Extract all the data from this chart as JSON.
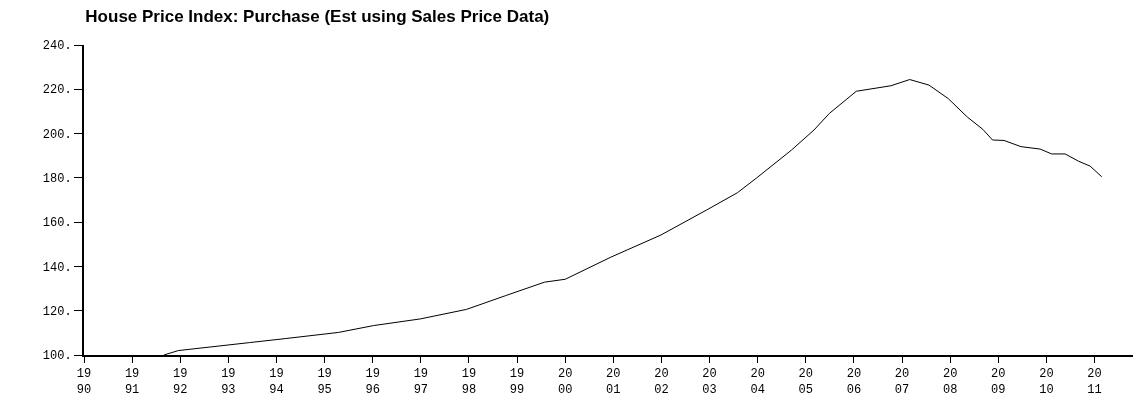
{
  "chart_data": {
    "type": "line",
    "title": "House Price Index: Purchase (Est using Sales Price Data)",
    "x": [
      1991.66,
      1991.96,
      1993.44,
      1994.18,
      1995.29,
      1996.02,
      1996.99,
      1997.95,
      1998.76,
      1999.57,
      2000.0,
      2000.95,
      2001.99,
      2002.94,
      2003.58,
      2003.98,
      2004.7,
      2005.17,
      2005.49,
      2006.05,
      2006.77,
      2007.16,
      2007.56,
      2007.96,
      2008.36,
      2008.68,
      2008.88,
      2009.12,
      2009.47,
      2009.87,
      2010.11,
      2010.39,
      2010.67,
      2010.91,
      2011.15
    ],
    "series": [
      {
        "color": "#000000",
        "values": [
          100.0,
          102.0,
          105.6,
          107.4,
          110.2,
          113.3,
          116.3,
          120.6,
          126.8,
          132.9,
          134.2,
          144.2,
          154.2,
          165.5,
          173.3,
          180.0,
          192.5,
          201.6,
          209.1,
          219.1,
          221.6,
          224.4,
          221.9,
          215.8,
          207.4,
          201.9,
          197.1,
          196.9,
          194.1,
          193.0,
          190.8,
          190.8,
          187.5,
          185.3,
          180.5
        ]
      }
    ],
    "xlim": [
      1990,
      2011.8
    ],
    "xticks": [
      1990,
      1991,
      1992,
      1993,
      1994,
      1995,
      1996,
      1997,
      1998,
      1999,
      2000,
      2001,
      2002,
      2003,
      2004,
      2005,
      2006,
      2007,
      2008,
      2009,
      2010,
      2011
    ],
    "ylim": [
      100,
      240
    ],
    "yticks": [
      {
        "value": 100,
        "label": "100."
      },
      {
        "value": 120,
        "label": "120."
      },
      {
        "value": 140,
        "label": "140."
      },
      {
        "value": 160,
        "label": "160."
      },
      {
        "value": 180,
        "label": "180."
      },
      {
        "value": 200,
        "label": "200."
      },
      {
        "value": 220,
        "label": "220."
      },
      {
        "value": 240,
        "label": "240."
      }
    ],
    "line_style": "solid"
  }
}
